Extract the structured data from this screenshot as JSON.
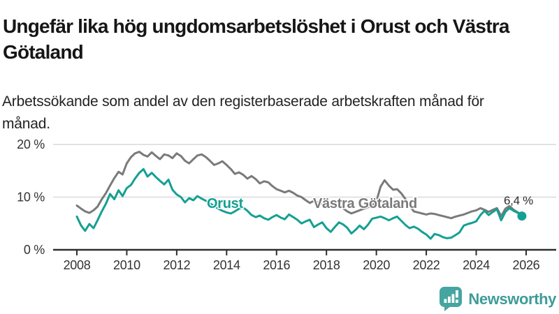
{
  "header": {
    "title": "Ungefär lika hög ungdomsarbetslöshet i Orust och Västra Götaland",
    "subtitle": "Arbetssökande som andel av den registerbaserade arbetskraften månad för månad."
  },
  "chart_data": {
    "type": "line",
    "unit": "%",
    "grid": "horizontal-only",
    "legend_position": "inline-labels",
    "x_axis": {
      "range_years": [
        2007.1,
        2027.2
      ],
      "ticks": [
        2008,
        2010,
        2012,
        2014,
        2016,
        2018,
        2020,
        2022,
        2024,
        2026
      ]
    },
    "y_axis": {
      "range": [
        0,
        21
      ],
      "ticks": [
        {
          "value": 0,
          "label": "0 %"
        },
        {
          "value": 10,
          "label": "10 %"
        },
        {
          "value": 20,
          "label": "20 %"
        }
      ]
    },
    "series": [
      {
        "name": "Västra Götaland",
        "color": "#7a7a7a",
        "points": [
          [
            2008.0,
            8.4
          ],
          [
            2008.17,
            7.8
          ],
          [
            2008.33,
            7.3
          ],
          [
            2008.5,
            7.0
          ],
          [
            2008.67,
            7.5
          ],
          [
            2008.83,
            8.2
          ],
          [
            2009.0,
            9.6
          ],
          [
            2009.17,
            10.8
          ],
          [
            2009.33,
            12.2
          ],
          [
            2009.5,
            13.6
          ],
          [
            2009.67,
            14.8
          ],
          [
            2009.83,
            14.3
          ],
          [
            2010.0,
            16.4
          ],
          [
            2010.17,
            17.6
          ],
          [
            2010.33,
            18.3
          ],
          [
            2010.5,
            18.6
          ],
          [
            2010.67,
            18.0
          ],
          [
            2010.83,
            17.7
          ],
          [
            2011.0,
            18.5
          ],
          [
            2011.17,
            17.8
          ],
          [
            2011.33,
            17.2
          ],
          [
            2011.5,
            18.1
          ],
          [
            2011.67,
            17.9
          ],
          [
            2011.83,
            17.4
          ],
          [
            2012.0,
            18.3
          ],
          [
            2012.17,
            17.8
          ],
          [
            2012.33,
            16.9
          ],
          [
            2012.5,
            16.4
          ],
          [
            2012.67,
            17.2
          ],
          [
            2012.83,
            17.9
          ],
          [
            2013.0,
            18.1
          ],
          [
            2013.17,
            17.6
          ],
          [
            2013.33,
            16.9
          ],
          [
            2013.5,
            16.1
          ],
          [
            2013.67,
            16.4
          ],
          [
            2013.83,
            16.8
          ],
          [
            2014.0,
            16.1
          ],
          [
            2014.17,
            15.3
          ],
          [
            2014.33,
            14.4
          ],
          [
            2014.5,
            14.7
          ],
          [
            2014.67,
            14.2
          ],
          [
            2014.83,
            13.5
          ],
          [
            2015.0,
            14.0
          ],
          [
            2015.17,
            13.4
          ],
          [
            2015.33,
            12.6
          ],
          [
            2015.5,
            13.0
          ],
          [
            2015.67,
            12.8
          ],
          [
            2015.83,
            12.1
          ],
          [
            2016.0,
            11.5
          ],
          [
            2016.17,
            11.2
          ],
          [
            2016.33,
            10.9
          ],
          [
            2016.5,
            11.2
          ],
          [
            2016.67,
            10.8
          ],
          [
            2016.83,
            10.3
          ],
          [
            2017.0,
            10.0
          ],
          [
            2017.17,
            9.4
          ],
          [
            2017.33,
            8.9
          ],
          [
            2017.5,
            9.3
          ],
          [
            2017.67,
            9.0
          ],
          [
            2017.83,
            8.7
          ],
          [
            2018.0,
            8.6
          ],
          [
            2018.17,
            8.3
          ],
          [
            2018.33,
            8.0
          ],
          [
            2018.5,
            8.4
          ],
          [
            2018.67,
            7.9
          ],
          [
            2018.83,
            7.3
          ],
          [
            2019.0,
            6.9
          ],
          [
            2019.17,
            7.2
          ],
          [
            2019.33,
            7.5
          ],
          [
            2019.5,
            7.8
          ],
          [
            2019.67,
            8.1
          ],
          [
            2019.83,
            8.4
          ],
          [
            2020.0,
            9.2
          ],
          [
            2020.17,
            12.0
          ],
          [
            2020.33,
            13.2
          ],
          [
            2020.5,
            12.2
          ],
          [
            2020.67,
            11.4
          ],
          [
            2020.83,
            11.5
          ],
          [
            2021.0,
            10.7
          ],
          [
            2021.17,
            9.6
          ],
          [
            2021.33,
            8.4
          ],
          [
            2021.5,
            7.3
          ],
          [
            2021.67,
            7.1
          ],
          [
            2021.83,
            6.9
          ],
          [
            2022.0,
            6.7
          ],
          [
            2022.17,
            6.9
          ],
          [
            2022.33,
            6.8
          ],
          [
            2022.5,
            6.6
          ],
          [
            2022.67,
            6.4
          ],
          [
            2022.83,
            6.2
          ],
          [
            2023.0,
            6.0
          ],
          [
            2023.17,
            6.3
          ],
          [
            2023.33,
            6.5
          ],
          [
            2023.5,
            6.7
          ],
          [
            2023.67,
            7.0
          ],
          [
            2023.83,
            7.3
          ],
          [
            2024.0,
            7.5
          ],
          [
            2024.17,
            7.9
          ],
          [
            2024.33,
            7.6
          ],
          [
            2024.5,
            7.2
          ],
          [
            2024.67,
            7.6
          ],
          [
            2024.83,
            7.9
          ],
          [
            2025.0,
            6.4
          ],
          [
            2025.17,
            7.8
          ],
          [
            2025.33,
            8.3
          ],
          [
            2025.5,
            7.6
          ],
          [
            2025.67,
            7.1
          ],
          [
            2025.83,
            6.6
          ]
        ]
      },
      {
        "name": "Orust",
        "color": "#14a093",
        "points": [
          [
            2008.0,
            6.3
          ],
          [
            2008.17,
            4.6
          ],
          [
            2008.33,
            3.6
          ],
          [
            2008.5,
            4.9
          ],
          [
            2008.67,
            4.1
          ],
          [
            2008.83,
            5.6
          ],
          [
            2009.0,
            7.3
          ],
          [
            2009.17,
            8.8
          ],
          [
            2009.33,
            10.6
          ],
          [
            2009.5,
            9.6
          ],
          [
            2009.67,
            11.3
          ],
          [
            2009.83,
            10.2
          ],
          [
            2010.0,
            11.7
          ],
          [
            2010.17,
            12.3
          ],
          [
            2010.33,
            13.5
          ],
          [
            2010.5,
            14.6
          ],
          [
            2010.67,
            15.3
          ],
          [
            2010.83,
            13.9
          ],
          [
            2011.0,
            14.6
          ],
          [
            2011.17,
            13.8
          ],
          [
            2011.33,
            13.1
          ],
          [
            2011.5,
            12.4
          ],
          [
            2011.67,
            13.3
          ],
          [
            2011.83,
            11.4
          ],
          [
            2012.0,
            10.5
          ],
          [
            2012.17,
            10.0
          ],
          [
            2012.33,
            9.0
          ],
          [
            2012.5,
            9.8
          ],
          [
            2012.67,
            9.4
          ],
          [
            2012.83,
            10.2
          ],
          [
            2013.0,
            9.7
          ],
          [
            2013.17,
            9.3
          ],
          [
            2013.33,
            8.8
          ],
          [
            2013.5,
            8.3
          ],
          [
            2013.67,
            7.8
          ],
          [
            2013.83,
            7.4
          ],
          [
            2014.0,
            7.1
          ],
          [
            2014.17,
            6.9
          ],
          [
            2014.33,
            7.3
          ],
          [
            2014.5,
            7.8
          ],
          [
            2014.67,
            8.0
          ],
          [
            2014.83,
            7.4
          ],
          [
            2015.0,
            6.6
          ],
          [
            2015.17,
            6.2
          ],
          [
            2015.33,
            6.5
          ],
          [
            2015.5,
            6.0
          ],
          [
            2015.67,
            5.7
          ],
          [
            2015.83,
            6.2
          ],
          [
            2016.0,
            6.6
          ],
          [
            2016.17,
            6.1
          ],
          [
            2016.33,
            5.8
          ],
          [
            2016.5,
            6.7
          ],
          [
            2016.67,
            6.2
          ],
          [
            2016.83,
            5.7
          ],
          [
            2017.0,
            5.0
          ],
          [
            2017.17,
            5.4
          ],
          [
            2017.33,
            5.7
          ],
          [
            2017.5,
            4.3
          ],
          [
            2017.67,
            4.8
          ],
          [
            2017.83,
            5.2
          ],
          [
            2018.0,
            4.1
          ],
          [
            2018.17,
            3.4
          ],
          [
            2018.33,
            4.3
          ],
          [
            2018.5,
            5.2
          ],
          [
            2018.67,
            4.8
          ],
          [
            2018.83,
            4.2
          ],
          [
            2019.0,
            3.1
          ],
          [
            2019.17,
            3.8
          ],
          [
            2019.33,
            4.6
          ],
          [
            2019.5,
            3.9
          ],
          [
            2019.67,
            4.8
          ],
          [
            2019.83,
            5.9
          ],
          [
            2020.0,
            6.1
          ],
          [
            2020.17,
            6.3
          ],
          [
            2020.33,
            6.0
          ],
          [
            2020.5,
            5.6
          ],
          [
            2020.67,
            6.0
          ],
          [
            2020.83,
            6.3
          ],
          [
            2021.0,
            5.5
          ],
          [
            2021.17,
            4.7
          ],
          [
            2021.33,
            4.1
          ],
          [
            2021.5,
            4.4
          ],
          [
            2021.67,
            4.0
          ],
          [
            2021.83,
            3.4
          ],
          [
            2022.0,
            2.9
          ],
          [
            2022.17,
            2.1
          ],
          [
            2022.33,
            3.0
          ],
          [
            2022.5,
            2.8
          ],
          [
            2022.67,
            2.4
          ],
          [
            2022.83,
            2.2
          ],
          [
            2023.0,
            2.3
          ],
          [
            2023.17,
            2.8
          ],
          [
            2023.33,
            3.3
          ],
          [
            2023.5,
            4.6
          ],
          [
            2023.67,
            4.9
          ],
          [
            2023.83,
            5.1
          ],
          [
            2024.0,
            5.4
          ],
          [
            2024.17,
            6.6
          ],
          [
            2024.33,
            7.4
          ],
          [
            2024.5,
            6.6
          ],
          [
            2024.67,
            7.2
          ],
          [
            2024.83,
            7.7
          ],
          [
            2025.0,
            5.6
          ],
          [
            2025.17,
            7.2
          ],
          [
            2025.33,
            7.9
          ],
          [
            2025.5,
            7.4
          ],
          [
            2025.67,
            7.0
          ],
          [
            2025.83,
            6.4
          ]
        ]
      }
    ],
    "end_annotation": {
      "text": "6,4 %",
      "series": "Orust",
      "value": 6.4
    },
    "colors": {
      "orust": "#14a093",
      "vastra_gotaland": "#7a7a7a",
      "grid": "#d9d9d9",
      "axis": "#2e2e2e"
    }
  },
  "footer": {
    "brand": "Newsworthy",
    "brand_color": "#3e9c98"
  }
}
